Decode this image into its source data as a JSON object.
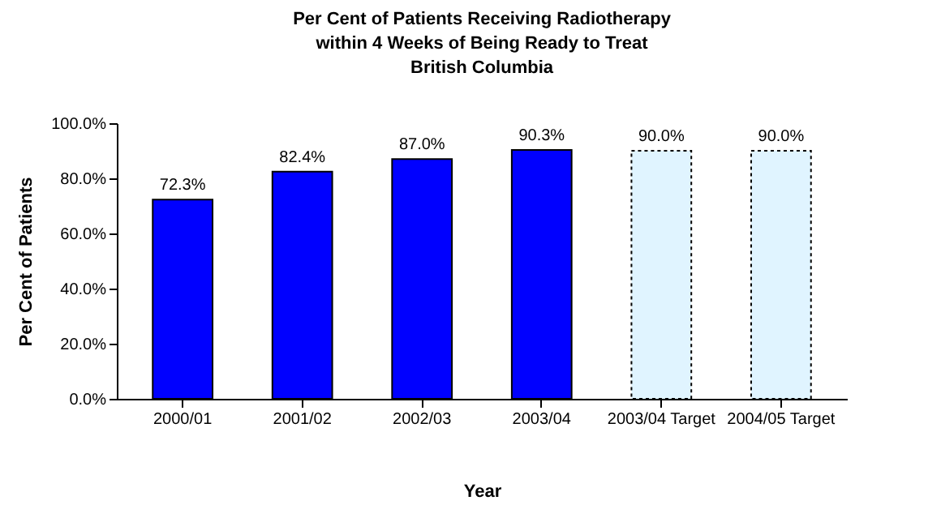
{
  "chart_data": {
    "type": "bar",
    "title": "Per Cent of Patients Receiving Radiotherapy\nwithin 4 Weeks of Being Ready to Treat\nBritish Columbia",
    "xlabel": "Year",
    "ylabel": "Per Cent of Patients",
    "categories": [
      "2000/01",
      "2001/02",
      "2002/03",
      "2003/04",
      "2003/04 Target",
      "2004/05 Target"
    ],
    "stacked": true,
    "series": [
      {
        "color": "#0000ff",
        "line_style": "solid",
        "values": [
          72.3,
          82.4,
          87.0,
          90.3,
          null,
          null
        ],
        "value_labels": [
          "72.3%",
          "82.4%",
          "87.0%",
          "90.3%",
          null,
          null
        ]
      },
      {
        "color": "#e0f4ff",
        "line_style": "dotted",
        "values": [
          null,
          null,
          null,
          null,
          90.0,
          90.0
        ],
        "value_labels": [
          null,
          null,
          null,
          null,
          "90.0%",
          "90.0%"
        ]
      }
    ],
    "ylim": [
      0,
      100
    ],
    "yticks": [
      {
        "value": 0,
        "label": "0.0%"
      },
      {
        "value": 20,
        "label": "20.0%"
      },
      {
        "value": 40,
        "label": "40.0%"
      },
      {
        "value": 60,
        "label": "60.0%"
      },
      {
        "value": 80,
        "label": "80.0%"
      },
      {
        "value": 100,
        "label": "100.0%"
      }
    ],
    "grid": false
  }
}
